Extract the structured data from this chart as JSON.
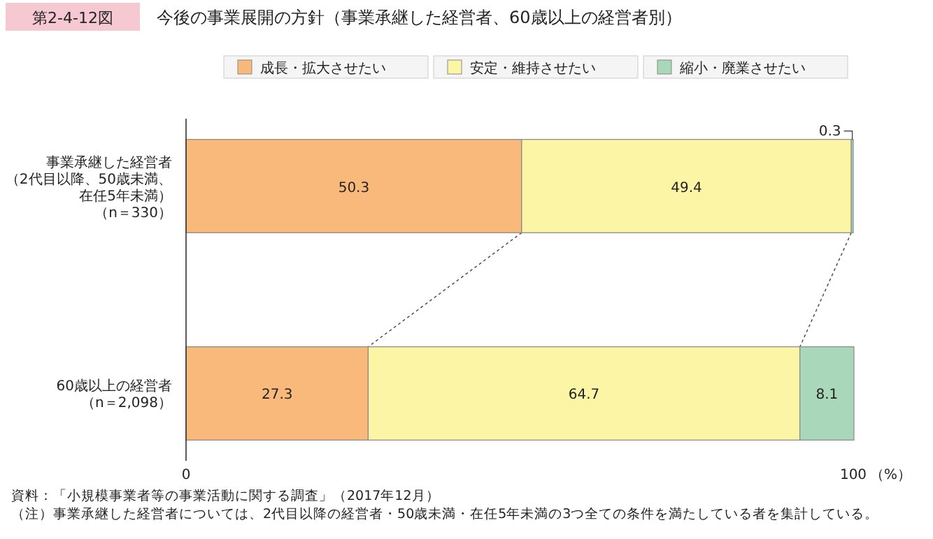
{
  "chart_data": {
    "type": "bar",
    "orientation": "horizontal",
    "stacked": true,
    "title": "第2-4-12図",
    "subtitle": "今後の事業展開の方針（事業承継した経営者、60歳以上の経営者別）",
    "categories": [
      "事業承継した経営者（2代目以降、50歳未満、在任5年未満）（n＝330）",
      "60歳以上の経営者（n＝2,098）"
    ],
    "series": [
      {
        "name": "成長・拡大させたい",
        "color": "#f9b97a",
        "values": [
          50.3,
          27.3
        ]
      },
      {
        "name": "安定・維持させたい",
        "color": "#fdf5a6",
        "values": [
          49.4,
          64.7
        ]
      },
      {
        "name": "縮小・廃業させたい",
        "color": "#a8d8b9",
        "values": [
          0.3,
          8.1
        ]
      }
    ],
    "xlim": [
      0,
      100
    ],
    "xticks": [
      0,
      100
    ],
    "xlabel": "（%）",
    "data_labels": true,
    "legend": "top right",
    "grid": false,
    "annotations": [
      "資料：「小規模事業者等の事業活動に関する調査」（2017年12月）",
      "（注）事業承継した経営者については、2代目以降の経営者・50歳未満・在任5年未満の3つ全ての条件を満たしている者を集計している。"
    ]
  }
}
